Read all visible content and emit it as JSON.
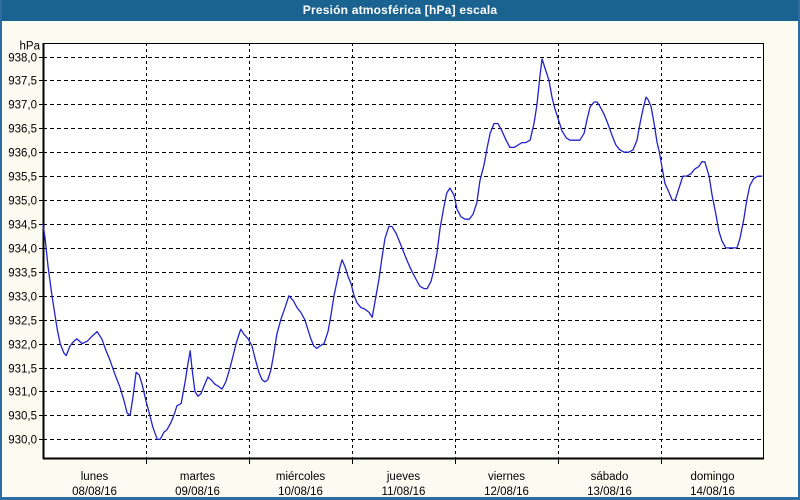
{
  "window": {
    "title": "Presión atmosférica [hPa] escala"
  },
  "colors": {
    "titlebar_bg": "#1a6391",
    "window_border": "#2e6da4",
    "line_color": "#2222cc",
    "grid_color": "#000000",
    "plot_bg": "#ffffff"
  },
  "chart_data": {
    "type": "line",
    "title": "Presión atmosférica [hPa] escala",
    "xlabel": "",
    "ylabel": "hPa",
    "grid": "dashed",
    "legend": "none",
    "y_axis": {
      "unit_label": "hPa",
      "min": 930.0,
      "max": 938.0,
      "tick_step": 0.5,
      "ticks": [
        {
          "label": "938,0",
          "value": 938.0
        },
        {
          "label": "937,5",
          "value": 937.5
        },
        {
          "label": "937,0",
          "value": 937.0
        },
        {
          "label": "936,5",
          "value": 936.5
        },
        {
          "label": "936,0",
          "value": 936.0
        },
        {
          "label": "935,5",
          "value": 935.5
        },
        {
          "label": "935,0",
          "value": 935.0
        },
        {
          "label": "934,5",
          "value": 934.5
        },
        {
          "label": "934,0",
          "value": 934.0
        },
        {
          "label": "933,5",
          "value": 933.5
        },
        {
          "label": "933,0",
          "value": 933.0
        },
        {
          "label": "932,5",
          "value": 932.5
        },
        {
          "label": "932,0",
          "value": 932.0
        },
        {
          "label": "931,5",
          "value": 931.5
        },
        {
          "label": "931,0",
          "value": 931.0
        },
        {
          "label": "930,5",
          "value": 930.5
        },
        {
          "label": "930,0",
          "value": 930.0
        }
      ]
    },
    "x_axis": {
      "total_hours": 168,
      "days": [
        {
          "name": "lunes",
          "date": "08/08/16"
        },
        {
          "name": "martes",
          "date": "09/08/16"
        },
        {
          "name": "miércoles",
          "date": "10/08/16"
        },
        {
          "name": "jueves",
          "date": "11/08/16"
        },
        {
          "name": "viernes",
          "date": "12/08/16"
        },
        {
          "name": "sábado",
          "date": "13/08/16"
        },
        {
          "name": "domingo",
          "date": "14/08/16"
        }
      ]
    },
    "series": [
      {
        "name": "Presión atmosférica",
        "units": "hPa",
        "color": "#2222cc",
        "points_format": [
          "hours_from_start",
          "hPa"
        ],
        "points": [
          [
            0,
            934.5
          ],
          [
            0.5,
            934.2
          ],
          [
            1.2,
            933.6
          ],
          [
            2.1,
            933.0
          ],
          [
            3.3,
            932.3
          ],
          [
            4,
            932.0
          ],
          [
            4.9,
            931.8
          ],
          [
            5.4,
            931.75
          ],
          [
            6.3,
            931.95
          ],
          [
            7.2,
            932.05
          ],
          [
            7.9,
            932.1
          ],
          [
            9.1,
            932.0
          ],
          [
            10.3,
            932.05
          ],
          [
            11.4,
            932.15
          ],
          [
            12.6,
            932.25
          ],
          [
            13.7,
            932.1
          ],
          [
            14.7,
            931.85
          ],
          [
            15.6,
            931.65
          ],
          [
            16.8,
            931.35
          ],
          [
            17.9,
            931.1
          ],
          [
            18.9,
            930.8
          ],
          [
            19.6,
            930.55
          ],
          [
            20.3,
            930.5
          ],
          [
            21,
            930.9
          ],
          [
            21.7,
            931.4
          ],
          [
            22.4,
            931.35
          ],
          [
            23.1,
            931.15
          ],
          [
            24,
            930.8
          ],
          [
            24.9,
            930.5
          ],
          [
            25.6,
            930.25
          ],
          [
            26.6,
            930.0
          ],
          [
            27.3,
            930.0
          ],
          [
            28.2,
            930.15
          ],
          [
            28.9,
            930.2
          ],
          [
            29.8,
            930.35
          ],
          [
            30.5,
            930.5
          ],
          [
            31.2,
            930.7
          ],
          [
            32.2,
            930.75
          ],
          [
            33.1,
            931.2
          ],
          [
            33.8,
            931.6
          ],
          [
            34.3,
            931.85
          ],
          [
            34.7,
            931.5
          ],
          [
            35.4,
            931.0
          ],
          [
            36.1,
            930.9
          ],
          [
            36.8,
            930.95
          ],
          [
            37.7,
            931.15
          ],
          [
            38.4,
            931.3
          ],
          [
            39.1,
            931.25
          ],
          [
            40.1,
            931.15
          ],
          [
            41,
            931.1
          ],
          [
            41.7,
            931.05
          ],
          [
            42.6,
            931.2
          ],
          [
            43.6,
            931.5
          ],
          [
            44.3,
            931.75
          ],
          [
            45,
            932.0
          ],
          [
            45.7,
            932.2
          ],
          [
            46.1,
            932.3
          ],
          [
            46.8,
            932.2
          ],
          [
            47.8,
            932.1
          ],
          [
            48.7,
            931.95
          ],
          [
            49.4,
            931.7
          ],
          [
            50.3,
            931.4
          ],
          [
            51,
            931.25
          ],
          [
            51.7,
            931.2
          ],
          [
            52.4,
            931.25
          ],
          [
            53.1,
            931.45
          ],
          [
            53.8,
            931.8
          ],
          [
            54.5,
            932.2
          ],
          [
            55.4,
            932.5
          ],
          [
            56.4,
            932.75
          ],
          [
            57.3,
            933.0
          ],
          [
            58.3,
            932.9
          ],
          [
            59.2,
            932.75
          ],
          [
            60.1,
            932.65
          ],
          [
            61,
            932.5
          ],
          [
            61.7,
            932.3
          ],
          [
            62.4,
            932.1
          ],
          [
            63.1,
            931.95
          ],
          [
            63.8,
            931.9
          ],
          [
            64.5,
            931.95
          ],
          [
            65.5,
            932.0
          ],
          [
            66.4,
            932.25
          ],
          [
            67.1,
            932.6
          ],
          [
            67.8,
            933.0
          ],
          [
            68.5,
            933.3
          ],
          [
            69.2,
            933.6
          ],
          [
            69.7,
            933.75
          ],
          [
            70.4,
            933.6
          ],
          [
            71.1,
            933.4
          ],
          [
            71.8,
            933.25
          ],
          [
            72.5,
            933.0
          ],
          [
            73.2,
            932.85
          ],
          [
            74.1,
            932.75
          ],
          [
            75,
            932.72
          ],
          [
            76,
            932.65
          ],
          [
            76.7,
            932.55
          ],
          [
            77.4,
            932.9
          ],
          [
            78.3,
            933.35
          ],
          [
            79,
            933.8
          ],
          [
            79.7,
            934.2
          ],
          [
            80.6,
            934.45
          ],
          [
            81.3,
            934.45
          ],
          [
            82.3,
            934.3
          ],
          [
            83.2,
            934.1
          ],
          [
            84.1,
            933.9
          ],
          [
            85,
            933.7
          ],
          [
            86,
            933.5
          ],
          [
            86.9,
            933.35
          ],
          [
            87.8,
            933.2
          ],
          [
            88.8,
            933.15
          ],
          [
            89.5,
            933.15
          ],
          [
            90.4,
            933.3
          ],
          [
            91.1,
            933.55
          ],
          [
            91.8,
            933.9
          ],
          [
            92.5,
            934.4
          ],
          [
            93.4,
            934.85
          ],
          [
            94.1,
            935.15
          ],
          [
            94.8,
            935.25
          ],
          [
            95.8,
            935.1
          ],
          [
            96.5,
            934.8
          ],
          [
            97.4,
            934.65
          ],
          [
            98.3,
            934.6
          ],
          [
            99.3,
            934.6
          ],
          [
            100.2,
            934.7
          ],
          [
            101.1,
            934.95
          ],
          [
            101.8,
            935.4
          ],
          [
            102.8,
            935.75
          ],
          [
            103.5,
            936.1
          ],
          [
            104.2,
            936.4
          ],
          [
            105.1,
            936.6
          ],
          [
            106,
            936.6
          ],
          [
            106.9,
            936.45
          ],
          [
            107.9,
            936.25
          ],
          [
            108.8,
            936.1
          ],
          [
            109.8,
            936.1
          ],
          [
            110.7,
            936.15
          ],
          [
            111.6,
            936.2
          ],
          [
            112.5,
            936.2
          ],
          [
            113.5,
            936.25
          ],
          [
            114.4,
            936.6
          ],
          [
            115.1,
            937.0
          ],
          [
            115.8,
            937.6
          ],
          [
            116.3,
            937.95
          ],
          [
            117,
            937.75
          ],
          [
            117.9,
            937.5
          ],
          [
            118.6,
            937.15
          ],
          [
            119.3,
            936.9
          ],
          [
            120.2,
            936.65
          ],
          [
            120.9,
            936.45
          ],
          [
            121.9,
            936.3
          ],
          [
            122.8,
            936.25
          ],
          [
            123.9,
            936.25
          ],
          [
            125.1,
            936.25
          ],
          [
            126.1,
            936.4
          ],
          [
            126.8,
            936.7
          ],
          [
            127.5,
            936.95
          ],
          [
            128.4,
            937.05
          ],
          [
            129.1,
            937.05
          ],
          [
            129.8,
            936.95
          ],
          [
            130.7,
            936.8
          ],
          [
            131.6,
            936.6
          ],
          [
            132.6,
            936.35
          ],
          [
            133.5,
            936.15
          ],
          [
            134.4,
            936.05
          ],
          [
            135.4,
            936.0
          ],
          [
            136.5,
            936.0
          ],
          [
            137.5,
            936.05
          ],
          [
            138.4,
            936.25
          ],
          [
            139.1,
            936.6
          ],
          [
            139.8,
            936.9
          ],
          [
            140.5,
            937.15
          ],
          [
            141,
            937.1
          ],
          [
            141.7,
            936.95
          ],
          [
            142.4,
            936.6
          ],
          [
            143.1,
            936.2
          ],
          [
            143.5,
            936.05
          ],
          [
            144.2,
            935.7
          ],
          [
            144.9,
            935.35
          ],
          [
            145.9,
            935.15
          ],
          [
            146.6,
            935.0
          ],
          [
            147.3,
            935.0
          ],
          [
            148.2,
            935.25
          ],
          [
            149.1,
            935.5
          ],
          [
            150,
            935.5
          ],
          [
            151,
            935.55
          ],
          [
            151.9,
            935.65
          ],
          [
            152.8,
            935.7
          ],
          [
            153.5,
            935.8
          ],
          [
            154.2,
            935.8
          ],
          [
            155.2,
            935.5
          ],
          [
            155.9,
            935.1
          ],
          [
            156.8,
            934.7
          ],
          [
            157.5,
            934.35
          ],
          [
            158.2,
            934.15
          ],
          [
            159.1,
            934.0
          ],
          [
            160,
            934.0
          ],
          [
            161,
            934.0
          ],
          [
            161.7,
            934.0
          ],
          [
            162.4,
            934.2
          ],
          [
            163.3,
            934.6
          ],
          [
            164,
            935.0
          ],
          [
            164.7,
            935.3
          ],
          [
            165.6,
            935.45
          ],
          [
            166.6,
            935.5
          ],
          [
            167.5,
            935.5
          ]
        ]
      }
    ]
  }
}
